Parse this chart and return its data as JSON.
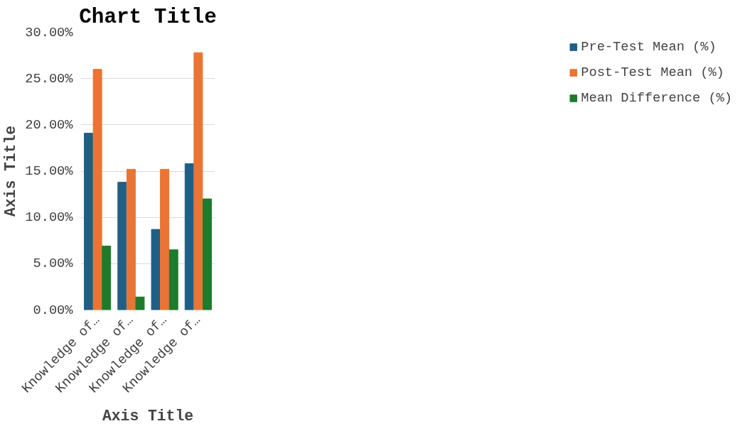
{
  "chart_data": {
    "type": "bar",
    "title": "Chart Title",
    "xlabel": "Axis Title",
    "ylabel": "Axis Title",
    "categories": [
      "Knowledge of…",
      "Knowledge of…",
      "Knowledge of…",
      "Knowledge of…"
    ],
    "series": [
      {
        "name": "Pre-Test Mean (%)",
        "color": "#1f5f85",
        "values": [
          19.1,
          13.8,
          8.7,
          15.8
        ]
      },
      {
        "name": "Post-Test Mean (%)",
        "color": "#ea7434",
        "values": [
          26.0,
          15.2,
          15.2,
          27.8
        ]
      },
      {
        "name": "Mean Difference (%)",
        "color": "#1f7a2b",
        "values": [
          6.9,
          1.4,
          6.5,
          12.0
        ]
      }
    ],
    "ylim": [
      0,
      30
    ],
    "yticks": [
      {
        "value": 0,
        "label": "0.00%"
      },
      {
        "value": 5,
        "label": "5.00%"
      },
      {
        "value": 10,
        "label": "10.00%"
      },
      {
        "value": 15,
        "label": "15.00%"
      },
      {
        "value": 20,
        "label": "20.00%"
      },
      {
        "value": 25,
        "label": "25.00%"
      },
      {
        "value": 30,
        "label": "30.00%"
      }
    ],
    "grid": "y",
    "legend": "right"
  }
}
